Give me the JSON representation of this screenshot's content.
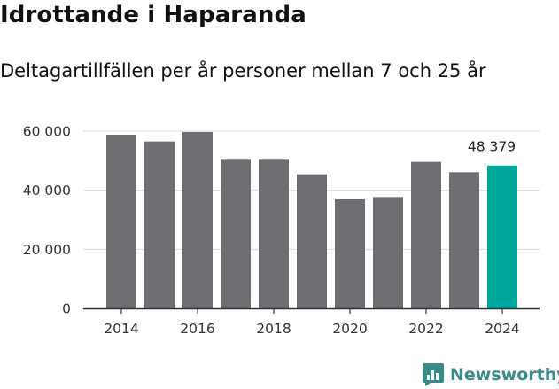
{
  "title": "Idrottande i Haparanda",
  "subtitle": "Deltagartillfällen per år personer mellan 7 och 25 år",
  "brand": "Newsworthy",
  "colors": {
    "bar": "#6e6d72",
    "highlight": "#00a79d",
    "grid": "#d9d9d9",
    "axis": "#333333",
    "brand": "#3a8a8a"
  },
  "chart_data": {
    "type": "bar",
    "title": "Idrottande i Haparanda",
    "subtitle": "Deltagartillfällen per år personer mellan 7 och 25 år",
    "xlabel": "",
    "ylabel": "",
    "categories": [
      "2014",
      "2015",
      "2016",
      "2017",
      "2018",
      "2019",
      "2020",
      "2021",
      "2022",
      "2023",
      "2024"
    ],
    "values": [
      58800,
      56500,
      59700,
      50300,
      50300,
      45400,
      36900,
      37700,
      49600,
      46100,
      48379
    ],
    "highlight_index": 10,
    "annotation": {
      "index": 10,
      "text": "48 379"
    },
    "x_tick_labels": [
      "2014",
      "2016",
      "2018",
      "2020",
      "2022",
      "2024"
    ],
    "y_ticks": [
      0,
      20000,
      40000,
      60000
    ],
    "y_tick_labels": [
      "0",
      "20 000",
      "40 000",
      "60 000"
    ],
    "ylim": [
      0,
      60000
    ],
    "grid": true
  }
}
